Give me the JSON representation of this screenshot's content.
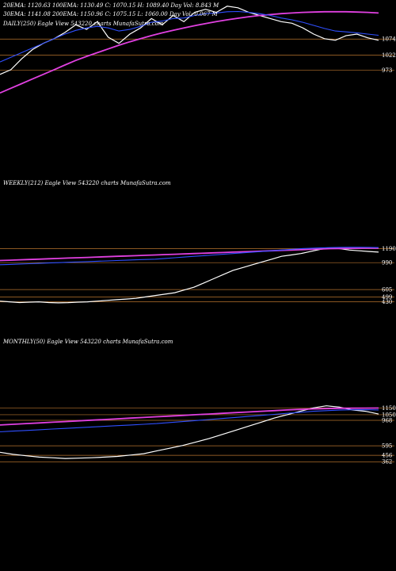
{
  "colors": {
    "background": "#000000",
    "price": "#ffffff",
    "ema_blue": "#2f4fff",
    "ema_magenta": "#e040e0",
    "ma_orange": "#b8742e",
    "level_line": "#b8742e",
    "red": "#c0392b"
  },
  "daily": {
    "legend_row1": "20EMA: 1120.63   100EMA: 1130.49   C: 1070.15   H: 1089.40   Day Vol: 8.843 M",
    "legend_row2": "30EMA: 1141.08   200EMA: 1150.96   C: 1075.15   L: 1060.00   Day Vol: 0.067 M",
    "title": "DAILY(250) Eagle  View  543220  charts MunafaSutra.com"
  },
  "weekly": {
    "title": "WEEKLY(212) Eagle  View  543220  charts MunafaSutra.com"
  },
  "monthly": {
    "title": "MONTHLY(50) Eagle  View  543220  charts MunafaSutra.com"
  },
  "chart_data": [
    {
      "type": "line",
      "panel": "daily",
      "y_ticks": [
        1074,
        1022,
        973
      ],
      "level_lines": [
        1074,
        1022,
        973
      ],
      "series": [
        {
          "role": "price",
          "color": "#ffffff",
          "values": [
            960,
            975,
            1010,
            1040,
            1060,
            1075,
            1095,
            1120,
            1105,
            1130,
            1080,
            1060,
            1090,
            1110,
            1140,
            1120,
            1150,
            1130,
            1160,
            1170,
            1160,
            1180,
            1175,
            1160,
            1150,
            1140,
            1130,
            1125,
            1110,
            1090,
            1075,
            1070,
            1085,
            1090,
            1078,
            1070
          ]
        },
        {
          "role": "ema_magenta",
          "color": "#e040e0",
          "values": [
            900,
            915,
            930,
            945,
            960,
            975,
            990,
            1005,
            1018,
            1030,
            1042,
            1054,
            1065,
            1075,
            1085,
            1094,
            1102,
            1110,
            1117,
            1124,
            1130,
            1136,
            1141,
            1146,
            1150,
            1153,
            1156,
            1158,
            1160,
            1161,
            1162,
            1162,
            1162,
            1161,
            1160,
            1158
          ]
        },
        {
          "role": "ema_blue",
          "color": "#2f4fff",
          "values": [
            1000,
            1015,
            1030,
            1045,
            1060,
            1075,
            1090,
            1102,
            1110,
            1115,
            1110,
            1100,
            1105,
            1115,
            1128,
            1132,
            1140,
            1142,
            1150,
            1156,
            1158,
            1162,
            1163,
            1160,
            1156,
            1150,
            1142,
            1136,
            1128,
            1118,
            1108,
            1100,
            1097,
            1094,
            1090,
            1086
          ]
        }
      ]
    },
    {
      "type": "line",
      "panel": "weekly",
      "y_ticks": [
        1190,
        990,
        605,
        499,
        430
      ],
      "level_lines": [
        1190,
        990,
        605,
        499,
        430
      ],
      "series": [
        {
          "role": "price",
          "color": "#ffffff",
          "values": [
            440,
            430,
            420,
            425,
            430,
            420,
            415,
            418,
            425,
            430,
            440,
            450,
            460,
            470,
            480,
            500,
            520,
            540,
            560,
            600,
            640,
            700,
            760,
            820,
            880,
            920,
            960,
            1000,
            1040,
            1080,
            1100,
            1120,
            1150,
            1180,
            1200,
            1190,
            1170,
            1160,
            1150,
            1140
          ]
        },
        {
          "role": "ema_magenta",
          "color": "#e040e0",
          "values": [
            1020,
            1025,
            1030,
            1035,
            1040,
            1045,
            1050,
            1055,
            1060,
            1065,
            1070,
            1075,
            1080,
            1085,
            1090,
            1095,
            1100,
            1105,
            1110,
            1115,
            1120,
            1125,
            1130,
            1135,
            1140,
            1145,
            1150,
            1155,
            1160,
            1165,
            1170,
            1175,
            1180,
            1185,
            1190,
            1192,
            1194,
            1196,
            1197,
            1198
          ]
        },
        {
          "role": "ema_blue",
          "color": "#2f4fff",
          "values": [
            960,
            965,
            970,
            975,
            980,
            985,
            990,
            995,
            1000,
            1005,
            1010,
            1015,
            1020,
            1025,
            1030,
            1035,
            1040,
            1050,
            1060,
            1070,
            1080,
            1090,
            1100,
            1110,
            1120,
            1130,
            1140,
            1150,
            1160,
            1170,
            1180,
            1190,
            1195,
            1200,
            1205,
            1208,
            1210,
            1210,
            1208,
            1205
          ]
        }
      ]
    },
    {
      "type": "line",
      "panel": "monthly",
      "y_ticks": [
        1150,
        1050,
        968,
        595,
        456,
        362
      ],
      "level_lines": [
        1150,
        1050,
        968,
        595,
        456,
        362
      ],
      "series": [
        {
          "role": "price",
          "color": "#ffffff",
          "values": [
            500,
            470,
            450,
            430,
            420,
            410,
            415,
            420,
            430,
            440,
            460,
            480,
            520,
            560,
            600,
            650,
            700,
            760,
            820,
            880,
            940,
            1000,
            1050,
            1100,
            1150,
            1180,
            1160,
            1120,
            1100,
            1060
          ]
        },
        {
          "role": "ema_magenta",
          "color": "#e040e0",
          "values": [
            900,
            910,
            920,
            930,
            940,
            950,
            960,
            970,
            980,
            990,
            1000,
            1010,
            1020,
            1030,
            1040,
            1050,
            1060,
            1070,
            1080,
            1090,
            1100,
            1110,
            1120,
            1128,
            1135,
            1140,
            1144,
            1146,
            1147,
            1148
          ]
        },
        {
          "role": "ema_blue",
          "color": "#2f4fff",
          "values": [
            800,
            810,
            820,
            830,
            840,
            850,
            860,
            870,
            880,
            890,
            900,
            910,
            920,
            935,
            950,
            965,
            980,
            995,
            1010,
            1025,
            1040,
            1055,
            1070,
            1085,
            1100,
            1110,
            1118,
            1122,
            1124,
            1120
          ]
        }
      ]
    }
  ]
}
